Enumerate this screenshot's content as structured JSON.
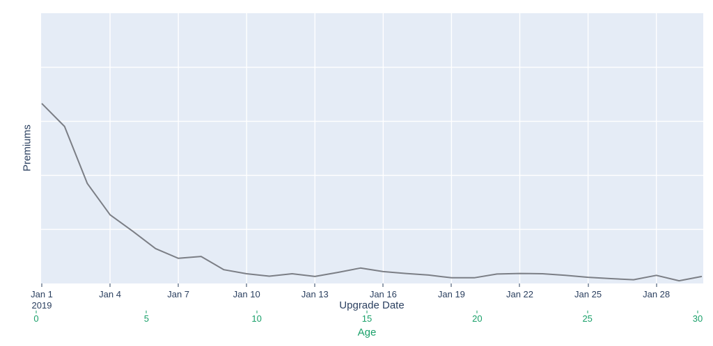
{
  "figure": {
    "y_axis_title": "Premiums",
    "x_axis_title": "Upgrade Date",
    "x2_axis_title": "Age",
    "date_ticks": [
      {
        "label": "Jan 1",
        "sublabel": "2019",
        "day": 0
      },
      {
        "label": "Jan 4",
        "day": 3
      },
      {
        "label": "Jan 7",
        "day": 6
      },
      {
        "label": "Jan 10",
        "day": 9
      },
      {
        "label": "Jan 13",
        "day": 12
      },
      {
        "label": "Jan 16",
        "day": 15
      },
      {
        "label": "Jan 19",
        "day": 18
      },
      {
        "label": "Jan 22",
        "day": 21
      },
      {
        "label": "Jan 25",
        "day": 24
      },
      {
        "label": "Jan 28",
        "day": 27
      }
    ],
    "age_ticks": [
      {
        "label": "0",
        "age": 0
      },
      {
        "label": "5",
        "age": 5
      },
      {
        "label": "10",
        "age": 10
      },
      {
        "label": "15",
        "age": 15
      },
      {
        "label": "20",
        "age": 20
      },
      {
        "label": "25",
        "age": 25
      },
      {
        "label": "30",
        "age": 30
      }
    ],
    "colors": {
      "plot_bg": "#e5ecf6",
      "grid": "#ffffff",
      "line": "#7b7e85",
      "axis_text": "#2a3f5f",
      "age_text": "#19a069"
    }
  },
  "chart_data": {
    "type": "line",
    "title": "",
    "xlabel": "Upgrade Date",
    "x2label": "Age",
    "ylabel": "Premiums",
    "x_tick_labels": [
      "Jan 1 2019",
      "Jan 4",
      "Jan 7",
      "Jan 10",
      "Jan 13",
      "Jan 16",
      "Jan 19",
      "Jan 22",
      "Jan 25",
      "Jan 28"
    ],
    "x2_tick_labels": [
      "0",
      "5",
      "10",
      "15",
      "20",
      "25",
      "30"
    ],
    "y_tick_labels_visible": false,
    "y_units_note": "y-axis shows no tick labels; values given as fraction of full y-axis range",
    "ylim_fraction": [
      0,
      1
    ],
    "grid": true,
    "legend": false,
    "x": [
      "2019-01-01",
      "2019-01-02",
      "2019-01-03",
      "2019-01-04",
      "2019-01-05",
      "2019-01-06",
      "2019-01-07",
      "2019-01-08",
      "2019-01-09",
      "2019-01-10",
      "2019-01-11",
      "2019-01-12",
      "2019-01-13",
      "2019-01-14",
      "2019-01-15",
      "2019-01-16",
      "2019-01-17",
      "2019-01-18",
      "2019-01-19",
      "2019-01-20",
      "2019-01-21",
      "2019-01-22",
      "2019-01-23",
      "2019-01-24",
      "2019-01-25",
      "2019-01-26",
      "2019-01-27",
      "2019-01-28",
      "2019-01-29",
      "2019-01-30"
    ],
    "x2_age_days": [
      0,
      1,
      2,
      3,
      4,
      5,
      6,
      7,
      8,
      9,
      10,
      11,
      12,
      13,
      14,
      15,
      16,
      17,
      18,
      19,
      20,
      21,
      22,
      23,
      24,
      25,
      26,
      27,
      28,
      29
    ],
    "series": [
      {
        "name": "Premiums",
        "y_fraction_of_axis": [
          0.666,
          0.581,
          0.37,
          0.254,
          0.193,
          0.129,
          0.093,
          0.1,
          0.051,
          0.036,
          0.027,
          0.036,
          0.026,
          0.041,
          0.057,
          0.044,
          0.037,
          0.031,
          0.021,
          0.021,
          0.035,
          0.037,
          0.036,
          0.03,
          0.023,
          0.018,
          0.014,
          0.03,
          0.01,
          0.026
        ]
      }
    ]
  }
}
